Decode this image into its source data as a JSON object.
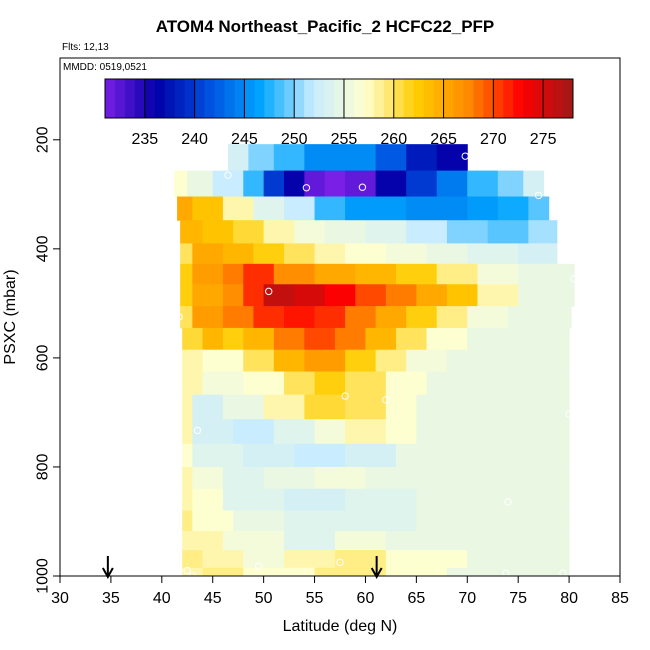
{
  "chart_data": {
    "type": "heatmap",
    "title": "ATOM4 Northeast_Pacific_2 HCFC22_PFP",
    "flights_note": "Flts: 12,13",
    "mmdd_note": "MMDD: 0519,0521",
    "xlabel": "Latitude (deg N)",
    "ylabel": "PSXC (mbar)",
    "xlim": [
      30,
      85
    ],
    "ylim": [
      1000,
      50
    ],
    "x_ticks": [
      30,
      35,
      40,
      45,
      50,
      55,
      60,
      65,
      70,
      75,
      80,
      85
    ],
    "y_ticks": [
      200,
      400,
      600,
      800,
      1000
    ],
    "colorbar": {
      "range": [
        231,
        278
      ],
      "ticks": [
        235,
        240,
        245,
        250,
        255,
        260,
        265,
        270,
        275
      ],
      "colors": [
        "#7a1fe6",
        "#0000a8",
        "#0050e0",
        "#00a6ff",
        "#c8ecff",
        "#ffffd0",
        "#ffcc00",
        "#ff8800",
        "#ff0000",
        "#a01818"
      ]
    },
    "cells": [
      {
        "p": 230,
        "seg": [
          [
            46.5,
            48.5,
            253
          ],
          [
            48.5,
            51,
            250
          ],
          [
            51,
            54,
            248
          ],
          [
            54,
            58,
            245
          ],
          [
            58,
            61,
            245
          ],
          [
            61,
            64,
            242
          ],
          [
            64,
            67,
            238
          ],
          [
            67,
            70,
            236
          ]
        ]
      },
      {
        "p": 283,
        "seg": [
          [
            41.2,
            42.5,
            257
          ],
          [
            42.5,
            45,
            255
          ],
          [
            45,
            48,
            252
          ],
          [
            48,
            50,
            248
          ],
          [
            50,
            52,
            240
          ],
          [
            52,
            54,
            236
          ],
          [
            54,
            56,
            232
          ],
          [
            56,
            58,
            231
          ],
          [
            58,
            61,
            232
          ],
          [
            61,
            64,
            236
          ],
          [
            64,
            67,
            240
          ],
          [
            67,
            70,
            244
          ],
          [
            70,
            73,
            248
          ],
          [
            73,
            75.5,
            250
          ],
          [
            75.5,
            77.5,
            253
          ]
        ]
      },
      {
        "p": 325,
        "seg": [
          [
            41.5,
            43,
            265
          ],
          [
            43,
            46,
            263
          ],
          [
            46,
            49,
            258
          ],
          [
            49,
            52,
            254
          ],
          [
            52,
            55,
            252
          ],
          [
            55,
            58,
            248
          ],
          [
            58,
            61,
            246
          ],
          [
            61,
            64,
            246
          ],
          [
            64,
            67,
            245
          ],
          [
            67,
            70,
            245
          ],
          [
            70,
            73,
            246
          ],
          [
            73,
            76,
            247
          ],
          [
            76,
            78,
            249
          ]
        ]
      },
      {
        "p": 370,
        "seg": [
          [
            41.8,
            44,
            264
          ],
          [
            44,
            47,
            263
          ],
          [
            47,
            50,
            261
          ],
          [
            50,
            53,
            258
          ],
          [
            53,
            56,
            256
          ],
          [
            56,
            60,
            255
          ],
          [
            60,
            64,
            254
          ],
          [
            64,
            68,
            252
          ],
          [
            68,
            72,
            250
          ],
          [
            72,
            76,
            249
          ],
          [
            76,
            78.8,
            251
          ]
        ]
      },
      {
        "p": 410,
        "seg": [
          [
            41.8,
            43,
            260
          ],
          [
            43,
            46,
            265
          ],
          [
            46,
            49,
            264
          ],
          [
            49,
            52,
            262
          ],
          [
            52,
            55,
            260
          ],
          [
            55,
            58,
            258
          ],
          [
            58,
            62,
            257
          ],
          [
            62,
            66,
            256
          ],
          [
            66,
            70,
            255
          ],
          [
            70,
            75,
            254
          ],
          [
            75,
            78.8,
            253
          ]
        ]
      },
      {
        "p": 445,
        "seg": [
          [
            41.8,
            43,
            262
          ],
          [
            43,
            46,
            266
          ],
          [
            46,
            48,
            268
          ],
          [
            48,
            51,
            271
          ],
          [
            51,
            55,
            267
          ],
          [
            55,
            59,
            265
          ],
          [
            59,
            63,
            264
          ],
          [
            63,
            67,
            262
          ],
          [
            67,
            71,
            259
          ],
          [
            71,
            75,
            256
          ],
          [
            75,
            80.5,
            255
          ]
        ]
      },
      {
        "p": 485,
        "seg": [
          [
            41.8,
            43,
            262
          ],
          [
            43,
            46,
            265
          ],
          [
            46,
            48,
            267
          ],
          [
            48,
            50,
            271
          ],
          [
            50,
            53,
            276
          ],
          [
            53,
            56,
            275
          ],
          [
            56,
            59,
            273
          ],
          [
            59,
            62,
            270
          ],
          [
            62,
            65,
            268
          ],
          [
            65,
            68,
            265
          ],
          [
            68,
            71,
            263
          ],
          [
            71,
            75,
            258
          ],
          [
            75,
            80.5,
            255
          ]
        ]
      },
      {
        "p": 525,
        "seg": [
          [
            41.8,
            43,
            260
          ],
          [
            43,
            46,
            266
          ],
          [
            46,
            49,
            268
          ],
          [
            49,
            52,
            271
          ],
          [
            52,
            55,
            272
          ],
          [
            55,
            58,
            271
          ],
          [
            58,
            61,
            268
          ],
          [
            61,
            64,
            265
          ],
          [
            64,
            67,
            262
          ],
          [
            67,
            70,
            259
          ],
          [
            70,
            74,
            256
          ],
          [
            74,
            80.2,
            255
          ]
        ]
      },
      {
        "p": 565,
        "seg": [
          [
            42,
            44,
            261
          ],
          [
            44,
            46,
            264
          ],
          [
            46,
            48,
            262
          ],
          [
            48,
            51,
            264
          ],
          [
            51,
            54,
            268
          ],
          [
            54,
            57,
            270
          ],
          [
            57,
            60,
            268
          ],
          [
            60,
            63,
            264
          ],
          [
            63,
            66,
            260
          ],
          [
            66,
            70,
            257
          ],
          [
            70,
            80,
            255
          ]
        ]
      },
      {
        "p": 605,
        "seg": [
          [
            42,
            44,
            258
          ],
          [
            44,
            48,
            257
          ],
          [
            48,
            51,
            260
          ],
          [
            51,
            54,
            264
          ],
          [
            54,
            58,
            266
          ],
          [
            58,
            61,
            262
          ],
          [
            61,
            64,
            259
          ],
          [
            64,
            68,
            256
          ],
          [
            68,
            80,
            255
          ]
        ]
      },
      {
        "p": 645,
        "seg": [
          [
            42,
            44,
            258
          ],
          [
            44,
            48,
            256
          ],
          [
            48,
            52,
            257
          ],
          [
            52,
            55,
            260
          ],
          [
            55,
            58,
            262
          ],
          [
            58,
            62,
            260
          ],
          [
            62,
            66,
            257
          ],
          [
            66,
            80,
            255
          ]
        ]
      },
      {
        "p": 690,
        "seg": [
          [
            42,
            43,
            258
          ],
          [
            43,
            46,
            253
          ],
          [
            46,
            50,
            255
          ],
          [
            50,
            54,
            258
          ],
          [
            54,
            58,
            261
          ],
          [
            58,
            62,
            260
          ],
          [
            62,
            65,
            257
          ],
          [
            65,
            80,
            255
          ]
        ]
      },
      {
        "p": 735,
        "seg": [
          [
            42,
            43,
            258
          ],
          [
            43,
            47,
            253
          ],
          [
            47,
            51,
            252
          ],
          [
            51,
            55,
            254
          ],
          [
            55,
            58,
            256
          ],
          [
            58,
            62,
            258
          ],
          [
            62,
            65,
            257
          ],
          [
            65,
            80,
            255
          ]
        ]
      },
      {
        "p": 780,
        "seg": [
          [
            42,
            43,
            257
          ],
          [
            43,
            48,
            254
          ],
          [
            48,
            53,
            253
          ],
          [
            53,
            58,
            252
          ],
          [
            58,
            63,
            253
          ],
          [
            63,
            80,
            255
          ]
        ]
      },
      {
        "p": 820,
        "seg": [
          [
            42,
            43,
            258
          ],
          [
            43,
            46,
            256
          ],
          [
            46,
            50,
            254
          ],
          [
            50,
            55,
            255
          ],
          [
            55,
            60,
            256
          ],
          [
            60,
            66,
            255
          ],
          [
            66,
            80,
            255
          ]
        ]
      },
      {
        "p": 860,
        "seg": [
          [
            42,
            43,
            258
          ],
          [
            43,
            46,
            257
          ],
          [
            46,
            52,
            254
          ],
          [
            52,
            58,
            253
          ],
          [
            58,
            65,
            254
          ],
          [
            65,
            80,
            255
          ]
        ]
      },
      {
        "p": 900,
        "seg": [
          [
            42,
            43,
            259
          ],
          [
            43,
            47,
            257
          ],
          [
            47,
            52,
            255
          ],
          [
            52,
            58,
            254
          ],
          [
            58,
            65,
            254
          ],
          [
            65,
            80,
            255
          ]
        ]
      },
      {
        "p": 935,
        "seg": [
          [
            42,
            43,
            258
          ],
          [
            43,
            46,
            258
          ],
          [
            46,
            52,
            256
          ],
          [
            52,
            57,
            254
          ],
          [
            57,
            62,
            256
          ],
          [
            62,
            80,
            255
          ]
        ]
      },
      {
        "p": 970,
        "seg": [
          [
            42,
            44,
            259
          ],
          [
            44,
            48,
            258
          ],
          [
            48,
            52,
            256
          ],
          [
            52,
            57,
            258
          ],
          [
            57,
            62,
            259
          ],
          [
            62,
            70,
            257
          ],
          [
            70,
            80,
            255
          ]
        ]
      },
      {
        "p": 1000,
        "seg": [
          [
            42,
            44,
            258
          ],
          [
            44,
            48,
            259
          ],
          [
            48,
            55,
            257
          ],
          [
            55,
            62,
            259
          ],
          [
            62,
            68,
            257
          ],
          [
            68,
            80,
            255
          ]
        ]
      }
    ],
    "sample_points": [
      {
        "lat": 69.8,
        "p": 230
      },
      {
        "lat": 46.5,
        "p": 265
      },
      {
        "lat": 54.2,
        "p": 288
      },
      {
        "lat": 59.7,
        "p": 287
      },
      {
        "lat": 77.0,
        "p": 302
      },
      {
        "lat": 80.5,
        "p": 455
      },
      {
        "lat": 50.5,
        "p": 478
      },
      {
        "lat": 41.7,
        "p": 525
      },
      {
        "lat": 58.0,
        "p": 670
      },
      {
        "lat": 62.0,
        "p": 677
      },
      {
        "lat": 80.0,
        "p": 703
      },
      {
        "lat": 43.5,
        "p": 733
      },
      {
        "lat": 74.0,
        "p": 864
      },
      {
        "lat": 57.5,
        "p": 975
      },
      {
        "lat": 42.5,
        "p": 990
      },
      {
        "lat": 49.5,
        "p": 982
      },
      {
        "lat": 73.8,
        "p": 995
      },
      {
        "lat": 79.4,
        "p": 995
      },
      {
        "lat": 43.0,
        "p": 1000
      }
    ],
    "arrows": [
      {
        "lat": 34.7
      },
      {
        "lat": 61.1
      }
    ]
  }
}
